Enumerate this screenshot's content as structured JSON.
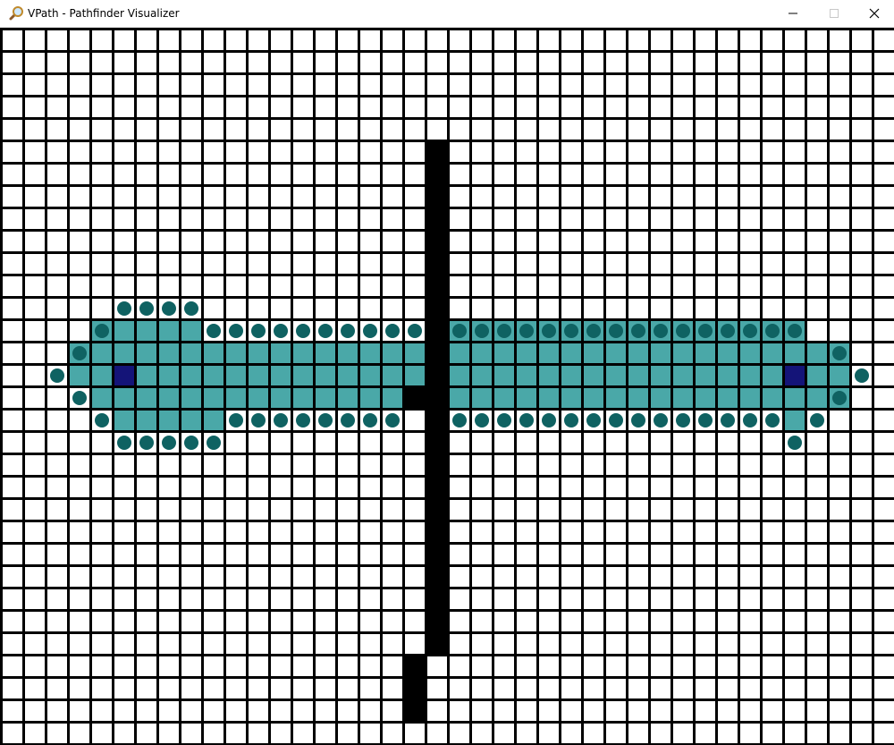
{
  "window": {
    "title": "VPath - Pathfinder Visualizer",
    "icon": "magnifier-icon",
    "controls": [
      "minimize-icon",
      "maximize-icon",
      "close-icon"
    ]
  },
  "colors": {
    "grid_line": "#000000",
    "empty": "#ffffff",
    "wall": "#000000",
    "visited": "#4aa8a8",
    "frontier": "#0f6262",
    "endpoint": "#141478"
  },
  "grid": {
    "cols": 40,
    "rows": 32,
    "endpoints": [
      [
        15,
        5
      ],
      [
        15,
        35
      ]
    ],
    "walls": [
      [
        5,
        19
      ],
      [
        6,
        19
      ],
      [
        7,
        19
      ],
      [
        8,
        19
      ],
      [
        9,
        19
      ],
      [
        10,
        19
      ],
      [
        11,
        19
      ],
      [
        12,
        19
      ],
      [
        13,
        19
      ],
      [
        14,
        19
      ],
      [
        15,
        19
      ],
      [
        16,
        18
      ],
      [
        16,
        19
      ],
      [
        17,
        19
      ],
      [
        18,
        19
      ],
      [
        19,
        19
      ],
      [
        20,
        19
      ],
      [
        21,
        19
      ],
      [
        22,
        19
      ],
      [
        23,
        19
      ],
      [
        24,
        19
      ],
      [
        25,
        19
      ],
      [
        26,
        19
      ],
      [
        27,
        19
      ],
      [
        28,
        18
      ],
      [
        29,
        18
      ],
      [
        30,
        18
      ]
    ],
    "visited_ranges": [
      [
        13,
        4,
        8
      ],
      [
        13,
        20,
        35
      ],
      [
        14,
        3,
        18
      ],
      [
        14,
        20,
        37
      ],
      [
        15,
        3,
        18
      ],
      [
        15,
        20,
        37
      ],
      [
        16,
        4,
        17
      ],
      [
        16,
        20,
        37
      ],
      [
        17,
        5,
        9
      ],
      [
        17,
        35,
        35
      ]
    ],
    "frontier": [
      [
        12,
        5
      ],
      [
        12,
        6
      ],
      [
        12,
        7
      ],
      [
        12,
        8
      ],
      [
        13,
        4
      ],
      [
        13,
        9
      ],
      [
        13,
        10
      ],
      [
        13,
        11
      ],
      [
        13,
        12
      ],
      [
        13,
        13
      ],
      [
        13,
        14
      ],
      [
        13,
        15
      ],
      [
        13,
        16
      ],
      [
        13,
        17
      ],
      [
        13,
        18
      ],
      [
        13,
        20
      ],
      [
        13,
        21
      ],
      [
        13,
        22
      ],
      [
        13,
        23
      ],
      [
        13,
        24
      ],
      [
        13,
        25
      ],
      [
        13,
        26
      ],
      [
        13,
        27
      ],
      [
        13,
        28
      ],
      [
        13,
        29
      ],
      [
        13,
        30
      ],
      [
        13,
        31
      ],
      [
        13,
        32
      ],
      [
        13,
        33
      ],
      [
        13,
        34
      ],
      [
        13,
        35
      ],
      [
        14,
        3
      ],
      [
        14,
        37
      ],
      [
        15,
        2
      ],
      [
        15,
        38
      ],
      [
        16,
        3
      ],
      [
        16,
        37
      ],
      [
        17,
        4
      ],
      [
        17,
        10
      ],
      [
        17,
        11
      ],
      [
        17,
        12
      ],
      [
        17,
        13
      ],
      [
        17,
        14
      ],
      [
        17,
        15
      ],
      [
        17,
        16
      ],
      [
        17,
        17
      ],
      [
        17,
        20
      ],
      [
        17,
        21
      ],
      [
        17,
        22
      ],
      [
        17,
        23
      ],
      [
        17,
        24
      ],
      [
        17,
        25
      ],
      [
        17,
        26
      ],
      [
        17,
        27
      ],
      [
        17,
        28
      ],
      [
        17,
        29
      ],
      [
        17,
        30
      ],
      [
        17,
        31
      ],
      [
        17,
        32
      ],
      [
        17,
        33
      ],
      [
        17,
        34
      ],
      [
        17,
        36
      ],
      [
        18,
        5
      ],
      [
        18,
        6
      ],
      [
        18,
        7
      ],
      [
        18,
        8
      ],
      [
        18,
        9
      ],
      [
        18,
        35
      ]
    ]
  }
}
